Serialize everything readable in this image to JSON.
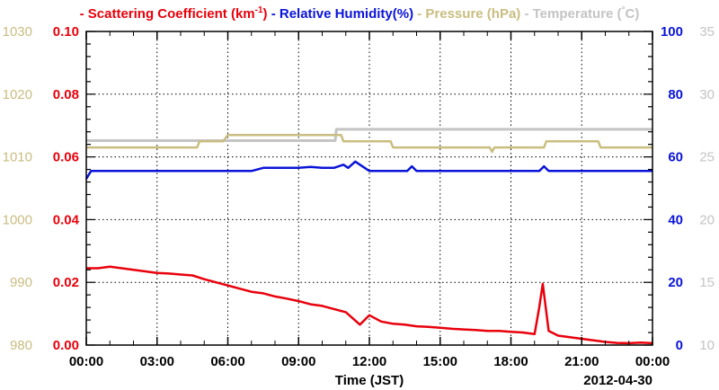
{
  "colors": {
    "scattering": "#e8000b",
    "humidity": "#0a14d8",
    "pressure": "#c9bd80",
    "temperature": "#c4c4c4",
    "axis": "#000000"
  },
  "chart_data": {
    "type": "line",
    "legend": [
      {
        "key": "scattering",
        "prefix": "- ",
        "label": "Scattering Coefficient (km",
        "sup": "-1",
        "suffix": ")"
      },
      {
        "key": "humidity",
        "prefix": " - ",
        "label": "Relative Humidity(%)",
        "sup": "",
        "suffix": ""
      },
      {
        "key": "pressure",
        "prefix": " - ",
        "label": "Pressure (hPa)",
        "sup": "",
        "suffix": ""
      },
      {
        "key": "temperature",
        "prefix": " - ",
        "label": "Temperature (",
        "sup": "°",
        "suffix": "C)"
      }
    ],
    "xlabel": "Time (JST)",
    "date_label": "2012-04-30",
    "x_ticks": [
      "00:00",
      "03:00",
      "06:00",
      "09:00",
      "12:00",
      "15:00",
      "18:00",
      "21:00",
      "00:00"
    ],
    "xlim_hours": [
      0,
      24
    ],
    "axes": {
      "pressure": {
        "ylim": [
          980,
          1030
        ],
        "ticks": [
          "980",
          "990",
          "1000",
          "1010",
          "1020",
          "1030"
        ]
      },
      "scattering": {
        "ylim": [
          0,
          0.1
        ],
        "ticks": [
          "0.00",
          "0.02",
          "0.04",
          "0.06",
          "0.08",
          "0.10"
        ]
      },
      "humidity": {
        "ylim": [
          0,
          100
        ],
        "ticks": [
          "0",
          "20",
          "40",
          "60",
          "80",
          "100"
        ]
      },
      "temperature": {
        "ylim": [
          10,
          35
        ],
        "ticks": [
          "10",
          "15",
          "20",
          "25",
          "30",
          "35"
        ]
      }
    },
    "series": [
      {
        "name": "Scattering Coefficient",
        "key": "scattering",
        "axis": "scattering",
        "x": [
          0,
          0.5,
          1,
          1.5,
          2,
          2.5,
          3,
          3.5,
          4,
          4.5,
          5,
          5.5,
          6,
          6.5,
          7,
          7.5,
          8,
          8.5,
          9,
          9.5,
          10,
          10.5,
          11,
          11.3,
          11.6,
          12,
          12.5,
          13,
          13.5,
          14,
          14.5,
          15,
          15.5,
          16,
          16.5,
          17,
          17.5,
          18,
          18.5,
          19,
          19.2,
          19.35,
          19.6,
          20,
          20.5,
          21,
          21.5,
          22,
          22.5,
          23,
          23.5,
          24
        ],
        "y": [
          0.0245,
          0.0245,
          0.025,
          0.0245,
          0.024,
          0.0235,
          0.023,
          0.0228,
          0.0225,
          0.0222,
          0.021,
          0.02,
          0.019,
          0.018,
          0.017,
          0.0165,
          0.0155,
          0.0148,
          0.014,
          0.013,
          0.0125,
          0.0115,
          0.0105,
          0.0085,
          0.0065,
          0.0095,
          0.0075,
          0.0068,
          0.0065,
          0.006,
          0.0058,
          0.0055,
          0.0052,
          0.005,
          0.0048,
          0.0045,
          0.0045,
          0.0042,
          0.004,
          0.0035,
          0.012,
          0.0195,
          0.0045,
          0.003,
          0.0025,
          0.002,
          0.0015,
          0.001,
          0.0007,
          0.0006,
          0.0008,
          0.0006
        ]
      },
      {
        "name": "Relative Humidity",
        "key": "humidity",
        "axis": "humidity",
        "x": [
          0,
          0.2,
          1,
          3,
          5,
          7,
          7.5,
          8,
          9,
          9.5,
          10,
          10.5,
          10.9,
          11.1,
          11.4,
          11.6,
          11.8,
          12,
          13,
          13.6,
          13.8,
          14,
          16,
          18,
          19.2,
          19.4,
          19.6,
          21,
          24
        ],
        "y": [
          53,
          55.5,
          55.5,
          55.5,
          55.5,
          55.5,
          56.5,
          56.5,
          56.5,
          56.8,
          56.5,
          56.5,
          57.5,
          56.5,
          58.5,
          57.5,
          56.5,
          55.5,
          55.5,
          55.5,
          57,
          55.5,
          55.5,
          55.5,
          55.5,
          57,
          55.5,
          55.5,
          55.5
        ]
      },
      {
        "name": "Pressure",
        "key": "pressure",
        "axis": "pressure",
        "x": [
          0,
          4.7,
          4.8,
          5.8,
          6.0,
          6.2,
          10.8,
          10.9,
          12.9,
          13.0,
          17.1,
          17.2,
          17.3,
          19.4,
          19.5,
          21.7,
          21.8,
          24
        ],
        "y": [
          1011.5,
          1011.5,
          1012.5,
          1012.5,
          1013.5,
          1013.5,
          1013.5,
          1012.5,
          1012.5,
          1011.5,
          1011.5,
          1010.8,
          1011.5,
          1011.5,
          1012.5,
          1012.5,
          1011.5,
          1011.5
        ]
      },
      {
        "name": "Temperature",
        "key": "temperature",
        "axis": "temperature",
        "x": [
          0,
          10.55,
          10.6,
          24
        ],
        "y": [
          26.3,
          26.3,
          27.2,
          27.2
        ]
      }
    ],
    "grid": true,
    "legend_position": "top"
  }
}
